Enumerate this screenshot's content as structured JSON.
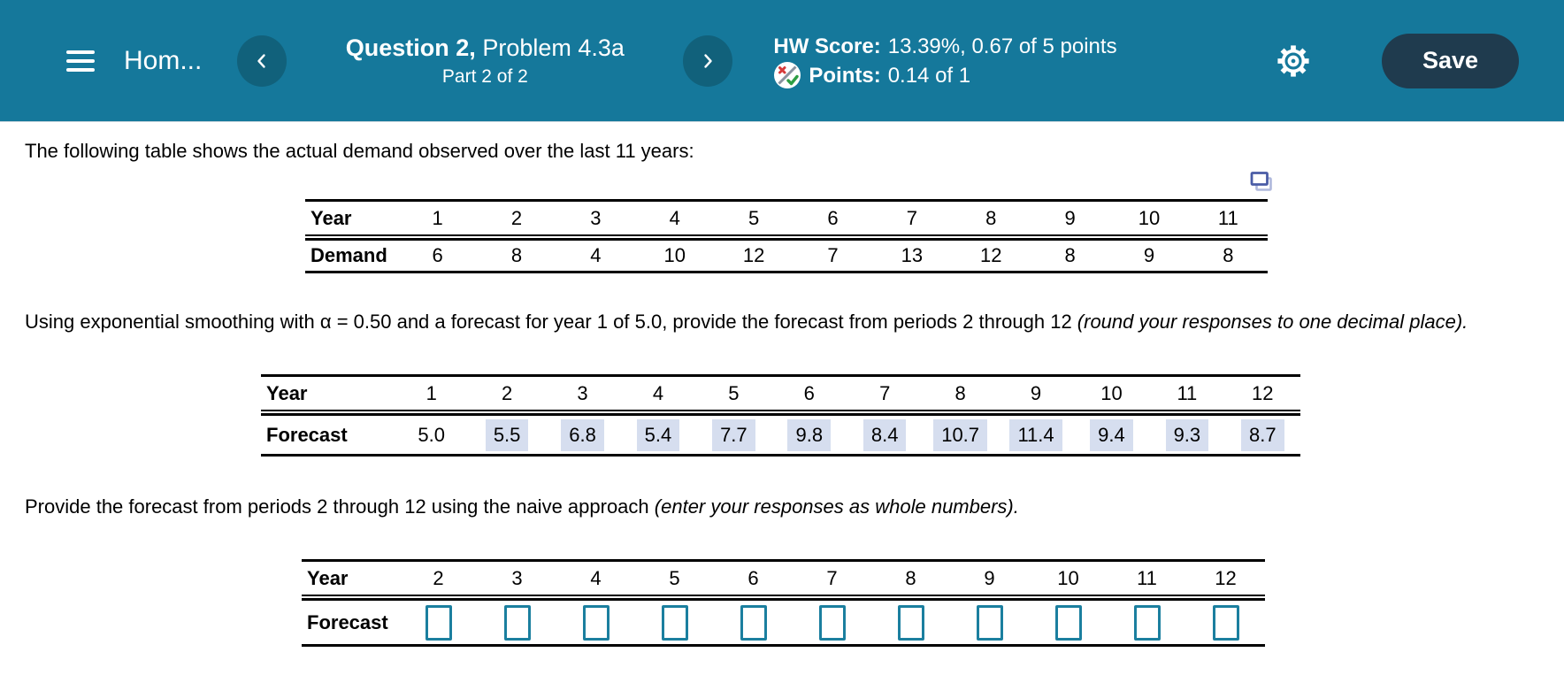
{
  "header": {
    "assignment_title": "Hom...",
    "question_label": "Question 2,",
    "question_name": "Problem 4.3a",
    "part_label": "Part 2 of 2",
    "hw_score_label": "HW Score:",
    "hw_score_value": "13.39%, 0.67 of 5 points",
    "points_label": "Points:",
    "points_value": "0.14 of 1",
    "save_label": "Save"
  },
  "content": {
    "intro": "The following table shows the actual demand observed over the last 11 years:",
    "smoothing_text": "Using exponential smoothing with α = 0.50 and a forecast for year 1 of 5.0, provide the forecast from periods 2 through 12 ",
    "smoothing_italic": "(round your responses to one decimal place).",
    "naive_text": "Provide the forecast from periods 2 through 12 using the naive approach ",
    "naive_italic": "(enter your responses as whole numbers)."
  },
  "tables": {
    "demand_table": {
      "row1_label": "Year",
      "row2_label": "Demand",
      "columns": [
        "1",
        "2",
        "3",
        "4",
        "5",
        "6",
        "7",
        "8",
        "9",
        "10",
        "11"
      ],
      "cells": [
        {
          "text": "6"
        },
        {
          "text": "8"
        },
        {
          "text": "4"
        },
        {
          "text": "10"
        },
        {
          "text": "12"
        },
        {
          "text": "7"
        },
        {
          "text": "13"
        },
        {
          "text": "12"
        },
        {
          "text": "8"
        },
        {
          "text": "9"
        },
        {
          "text": "8"
        }
      ]
    },
    "forecast_table": {
      "row1_label": "Year",
      "row2_label": "Forecast",
      "columns": [
        "1",
        "2",
        "3",
        "4",
        "5",
        "6",
        "7",
        "8",
        "9",
        "10",
        "11",
        "12"
      ],
      "cells": [
        {
          "text": "5.0"
        },
        {
          "text": "5.5",
          "highlight": true
        },
        {
          "text": "6.8",
          "highlight": true
        },
        {
          "text": "5.4",
          "highlight": true
        },
        {
          "text": "7.7",
          "highlight": true
        },
        {
          "text": "9.8",
          "highlight": true
        },
        {
          "text": "8.4",
          "highlight": true
        },
        {
          "text": "10.7",
          "highlight": true
        },
        {
          "text": "11.4",
          "highlight": true
        },
        {
          "text": "9.4",
          "highlight": true
        },
        {
          "text": "9.3",
          "highlight": true
        },
        {
          "text": "8.7",
          "highlight": true
        }
      ]
    },
    "naive_table": {
      "row1_label": "Year",
      "row2_label": "Forecast",
      "columns": [
        "2",
        "3",
        "4",
        "5",
        "6",
        "7",
        "8",
        "9",
        "10",
        "11",
        "12"
      ],
      "cells": [
        {
          "input": true
        },
        {
          "input": true
        },
        {
          "input": true
        },
        {
          "input": true
        },
        {
          "input": true
        },
        {
          "input": true
        },
        {
          "input": true
        },
        {
          "input": true
        },
        {
          "input": true
        },
        {
          "input": true
        },
        {
          "input": true
        }
      ]
    }
  },
  "colors": {
    "header_bg": "#15789B",
    "nav_button_bg": "#11617B",
    "save_button_bg": "#1F3B4E",
    "answer_highlight": "#D6DEEF",
    "input_border": "#1B7F9F"
  }
}
